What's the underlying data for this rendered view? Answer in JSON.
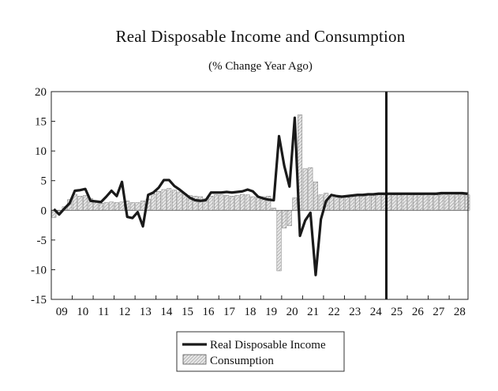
{
  "chart_data": {
    "type": "bar+line",
    "title": "Real Disposable Income and Consumption",
    "subtitle": "(% Change Year Ago)",
    "xlabel": "",
    "ylabel": "",
    "ylim": [
      -15,
      20
    ],
    "yticks": [
      -15,
      -10,
      -5,
      0,
      5,
      10,
      15,
      20
    ],
    "xlim": [
      2009.0,
      2028.9
    ],
    "xticks": [
      {
        "label": "09",
        "x": 2009
      },
      {
        "label": "10",
        "x": 2010
      },
      {
        "label": "11",
        "x": 2011
      },
      {
        "label": "12",
        "x": 2012
      },
      {
        "label": "13",
        "x": 2013
      },
      {
        "label": "14",
        "x": 2014
      },
      {
        "label": "15",
        "x": 2015
      },
      {
        "label": "16",
        "x": 2016
      },
      {
        "label": "17",
        "x": 2017
      },
      {
        "label": "18",
        "x": 2018
      },
      {
        "label": "19",
        "x": 2019
      },
      {
        "label": "20",
        "x": 2020
      },
      {
        "label": "21",
        "x": 2021
      },
      {
        "label": "22",
        "x": 2022
      },
      {
        "label": "23",
        "x": 2023
      },
      {
        "label": "24",
        "x": 2024
      },
      {
        "label": "25",
        "x": 2025
      },
      {
        "label": "26",
        "x": 2026
      },
      {
        "label": "27",
        "x": 2027
      },
      {
        "label": "28",
        "x": 2028
      }
    ],
    "forecast_marker_x": 2025.0,
    "grid": false,
    "legend_position": "bottom-center",
    "series": [
      {
        "name": "Real Disposable Income",
        "type": "line",
        "color": "#1a1a1a",
        "x": [
          2009.0,
          2009.25,
          2009.5,
          2009.75,
          2010.0,
          2010.25,
          2010.5,
          2010.75,
          2011.0,
          2011.25,
          2011.5,
          2011.75,
          2012.0,
          2012.25,
          2012.5,
          2012.75,
          2013.0,
          2013.25,
          2013.5,
          2013.75,
          2014.0,
          2014.25,
          2014.5,
          2014.75,
          2015.0,
          2015.25,
          2015.5,
          2015.75,
          2016.0,
          2016.25,
          2016.5,
          2016.75,
          2017.0,
          2017.25,
          2017.5,
          2017.75,
          2018.0,
          2018.25,
          2018.5,
          2018.75,
          2019.0,
          2019.25,
          2019.5,
          2019.75,
          2020.0,
          2020.25,
          2020.5,
          2020.75,
          2021.0,
          2021.25,
          2021.5,
          2021.75,
          2022.0,
          2022.25,
          2022.5,
          2022.75,
          2023.0,
          2023.25,
          2023.5,
          2023.75,
          2024.0,
          2024.25,
          2024.5,
          2024.75,
          2025.0,
          2025.25,
          2025.5,
          2025.75,
          2026.0,
          2026.25,
          2026.5,
          2026.75,
          2027.0,
          2027.25,
          2027.5,
          2027.75,
          2028.0,
          2028.25,
          2028.5,
          2028.75
        ],
        "values": [
          0.2,
          -0.7,
          0.3,
          1.2,
          3.3,
          3.4,
          3.6,
          1.6,
          1.5,
          1.4,
          2.3,
          3.3,
          2.4,
          4.8,
          -1.1,
          -1.3,
          -0.3,
          -2.7,
          2.6,
          3.0,
          3.8,
          5.1,
          5.1,
          4.1,
          3.5,
          2.8,
          2.1,
          1.7,
          1.6,
          1.7,
          3.0,
          3.0,
          3.0,
          3.1,
          3.0,
          3.1,
          3.2,
          3.5,
          3.2,
          2.3,
          2.0,
          1.8,
          1.7,
          12.5,
          7.5,
          4.0,
          15.6,
          -4.3,
          -1.7,
          -0.4,
          -10.9,
          -1.5,
          1.6,
          2.6,
          2.4,
          2.3,
          2.4,
          2.5,
          2.6,
          2.6,
          2.7,
          2.7,
          2.8,
          2.8,
          2.8,
          2.8,
          2.8,
          2.8,
          2.8,
          2.8,
          2.8,
          2.8,
          2.8,
          2.8,
          2.9,
          2.9,
          2.9,
          2.9,
          2.9,
          2.8
        ]
      },
      {
        "name": "Consumption",
        "type": "bar",
        "color": "#c8c8c8",
        "x": [
          2009.0,
          2009.25,
          2009.5,
          2009.75,
          2010.0,
          2010.25,
          2010.5,
          2010.75,
          2011.0,
          2011.25,
          2011.5,
          2011.75,
          2012.0,
          2012.25,
          2012.5,
          2012.75,
          2013.0,
          2013.25,
          2013.5,
          2013.75,
          2014.0,
          2014.25,
          2014.5,
          2014.75,
          2015.0,
          2015.25,
          2015.5,
          2015.75,
          2016.0,
          2016.25,
          2016.5,
          2016.75,
          2017.0,
          2017.25,
          2017.5,
          2017.75,
          2018.0,
          2018.25,
          2018.5,
          2018.75,
          2019.0,
          2019.25,
          2019.5,
          2019.75,
          2020.0,
          2020.25,
          2020.5,
          2020.75,
          2021.0,
          2021.25,
          2021.5,
          2021.75,
          2022.0,
          2022.25,
          2022.5,
          2022.75,
          2023.0,
          2023.25,
          2023.5,
          2023.75,
          2024.0,
          2024.25,
          2024.5,
          2024.75,
          2025.0,
          2025.25,
          2025.5,
          2025.75,
          2026.0,
          2026.25,
          2026.5,
          2026.75,
          2027.0,
          2027.25,
          2027.5,
          2027.75,
          2028.0,
          2028.25,
          2028.5,
          2028.75
        ],
        "values": [
          -1.2,
          -0.5,
          0.6,
          1.8,
          2.7,
          2.4,
          2.5,
          2.0,
          1.6,
          1.2,
          1.3,
          1.4,
          1.3,
          1.4,
          1.6,
          1.3,
          1.3,
          1.6,
          1.9,
          2.8,
          3.2,
          3.5,
          3.7,
          3.4,
          3.1,
          2.8,
          2.5,
          2.4,
          2.3,
          2.0,
          2.4,
          2.6,
          2.6,
          2.5,
          2.4,
          2.5,
          2.7,
          2.6,
          2.3,
          2.2,
          2.3,
          2.4,
          0.4,
          -10.2,
          -3.0,
          -2.6,
          2.1,
          16.1,
          7.0,
          7.2,
          4.8,
          2.6,
          2.9,
          2.4,
          2.3,
          2.2,
          2.2,
          2.3,
          2.4,
          2.4,
          2.6,
          2.6,
          2.6,
          2.6,
          2.7,
          2.6,
          2.6,
          2.7,
          2.6,
          2.6,
          2.6,
          2.7,
          2.7,
          2.6,
          2.6,
          2.6,
          2.7,
          2.6,
          2.6,
          2.6
        ]
      }
    ]
  }
}
